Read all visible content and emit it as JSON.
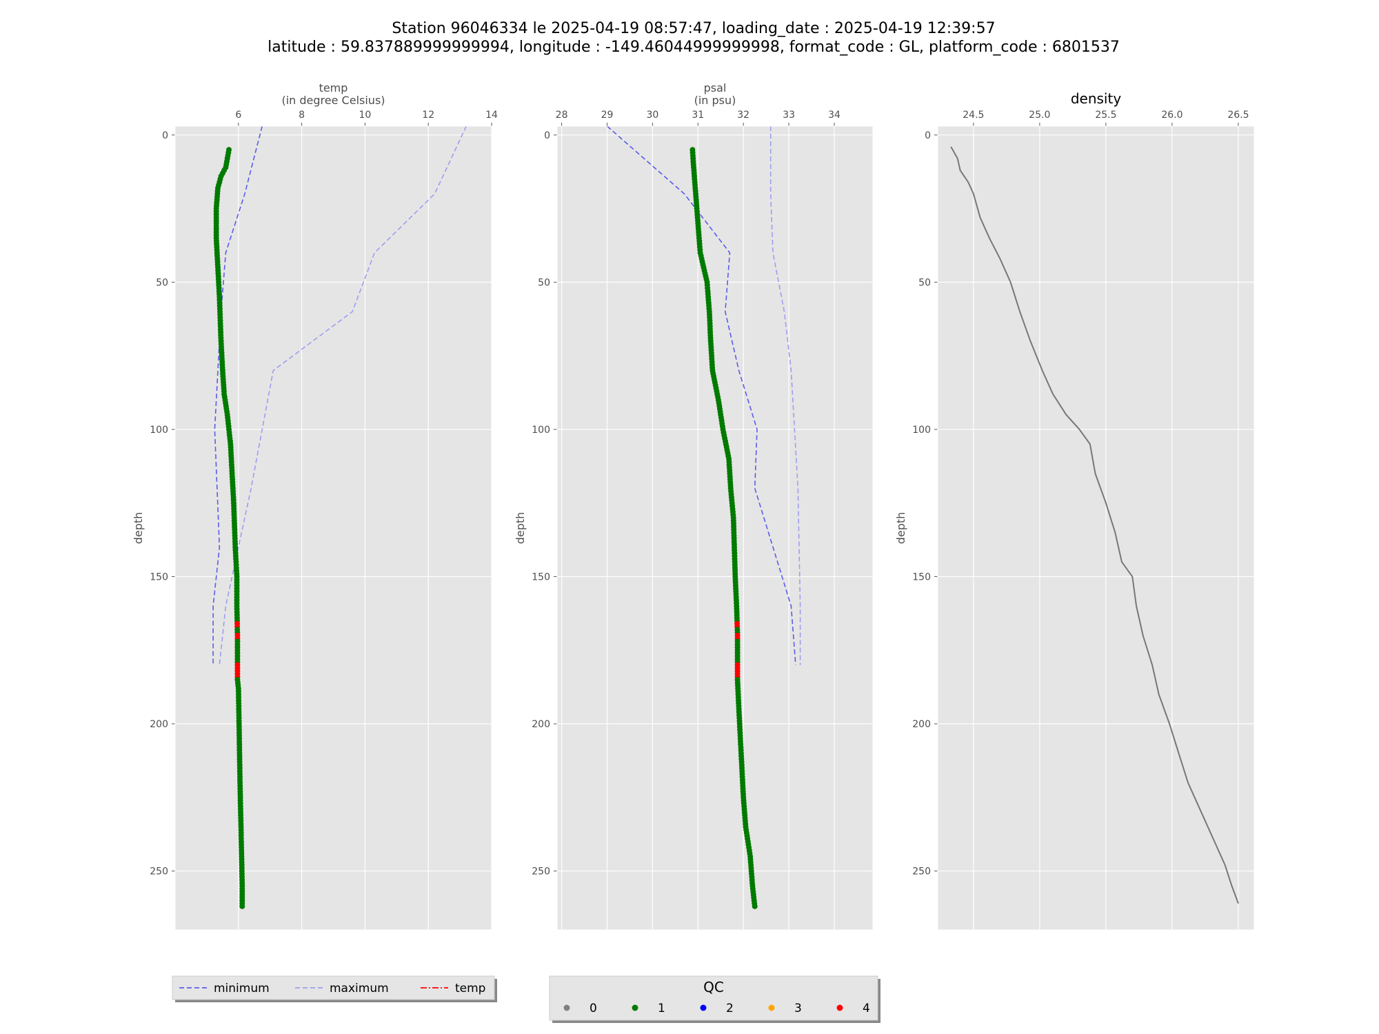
{
  "figure": {
    "title_line1": "Station 96046334 le 2025-04-19 08:57:47, loading_date : 2025-04-19 12:39:57",
    "title_line2": "latitude : 59.837889999999994, longitude : -149.46044999999998, format_code : GL, platform_code : 6801537"
  },
  "colors": {
    "panel_bg": "#e5e5e5",
    "grid": "#ffffff",
    "minimum": "#5b5bea",
    "maximum": "#9d9df0",
    "qc0": "#808080",
    "qc1": "#007a00",
    "qc2": "#0000ff",
    "qc3": "#ffa500",
    "qc4": "#ff0000",
    "density_line": "#777777"
  },
  "legend_profile": {
    "items": [
      {
        "label": "minimum",
        "style": "dashed",
        "color": "#5b5bea"
      },
      {
        "label": "maximum",
        "style": "dashed",
        "color": "#9d9df0"
      },
      {
        "label": "temp",
        "style": "dashdot",
        "color": "#ff0000"
      }
    ]
  },
  "legend_qc": {
    "title": "QC",
    "items": [
      {
        "label": "0",
        "color": "#808080"
      },
      {
        "label": "1",
        "color": "#007a00"
      },
      {
        "label": "2",
        "color": "#0000ff"
      },
      {
        "label": "3",
        "color": "#ffa500"
      },
      {
        "label": "4",
        "color": "#ff0000"
      }
    ]
  },
  "chart_data": [
    {
      "type": "scatter",
      "xlabel": "temp",
      "xlabel_unit": "(in degree Celsius)",
      "ylabel": "depth",
      "xlim": [
        4.0,
        14.0
      ],
      "ylim": [
        270,
        -3
      ],
      "xticks": [
        6,
        8,
        10,
        12,
        14
      ],
      "yticks": [
        0,
        50,
        100,
        150,
        200,
        250
      ],
      "grid": true,
      "series": [
        {
          "name": "minimum",
          "kind": "dashed-line",
          "points": [
            [
              6.75,
              -3
            ],
            [
              6.2,
              20
            ],
            [
              5.6,
              40
            ],
            [
              5.45,
              60
            ],
            [
              5.25,
              100
            ],
            [
              5.4,
              140
            ],
            [
              5.2,
              160
            ],
            [
              5.2,
              180
            ]
          ]
        },
        {
          "name": "maximum",
          "kind": "dashed-line",
          "points": [
            [
              13.2,
              -3
            ],
            [
              12.2,
              20
            ],
            [
              10.3,
              40
            ],
            [
              9.6,
              60
            ],
            [
              7.1,
              80
            ],
            [
              6.4,
              120
            ],
            [
              5.6,
              160
            ],
            [
              5.4,
              180
            ]
          ]
        },
        {
          "name": "temp",
          "kind": "qc-points",
          "profile": [
            [
              5.7,
              5
            ],
            [
              5.65,
              8
            ],
            [
              5.6,
              11
            ],
            [
              5.45,
              14
            ],
            [
              5.35,
              18
            ],
            [
              5.3,
              25
            ],
            [
              5.3,
              35
            ],
            [
              5.35,
              45
            ],
            [
              5.4,
              55
            ],
            [
              5.45,
              70
            ],
            [
              5.5,
              80
            ],
            [
              5.55,
              88
            ],
            [
              5.65,
              95
            ],
            [
              5.75,
              105
            ],
            [
              5.8,
              115
            ],
            [
              5.85,
              125
            ],
            [
              5.9,
              140
            ],
            [
              5.95,
              150
            ],
            [
              5.95,
              160
            ],
            [
              5.97,
              170
            ],
            [
              5.97,
              180
            ],
            [
              5.97,
              185
            ],
            [
              6.0,
              188
            ],
            [
              6.02,
              200
            ],
            [
              6.05,
              220
            ],
            [
              6.08,
              235
            ],
            [
              6.1,
              245
            ],
            [
              6.12,
              255
            ],
            [
              6.12,
              262
            ]
          ],
          "qc4_depths": [
            166,
            167,
            170,
            171,
            180,
            181,
            182,
            183,
            184
          ]
        }
      ]
    },
    {
      "type": "scatter",
      "xlabel": "psal",
      "xlabel_unit": "(in psu)",
      "ylabel": "depth",
      "xlim": [
        27.9,
        34.85
      ],
      "ylim": [
        270,
        -3
      ],
      "xticks": [
        28,
        29,
        30,
        31,
        32,
        33,
        34
      ],
      "yticks": [
        0,
        50,
        100,
        150,
        200,
        250
      ],
      "grid": true,
      "series": [
        {
          "name": "minimum",
          "kind": "dashed-line",
          "points": [
            [
              29.0,
              -3
            ],
            [
              30.7,
              20
            ],
            [
              31.7,
              40
            ],
            [
              31.6,
              60
            ],
            [
              31.9,
              80
            ],
            [
              32.3,
              100
            ],
            [
              32.25,
              120
            ],
            [
              33.05,
              160
            ],
            [
              33.15,
              180
            ]
          ]
        },
        {
          "name": "maximum",
          "kind": "dashed-line",
          "points": [
            [
              32.6,
              -3
            ],
            [
              32.6,
              20
            ],
            [
              32.65,
              40
            ],
            [
              32.9,
              60
            ],
            [
              33.05,
              80
            ],
            [
              33.2,
              120
            ],
            [
              33.25,
              160
            ],
            [
              33.25,
              180
            ]
          ]
        },
        {
          "name": "psal",
          "kind": "qc-points",
          "profile": [
            [
              30.88,
              5
            ],
            [
              30.9,
              10
            ],
            [
              30.95,
              20
            ],
            [
              31.0,
              30
            ],
            [
              31.05,
              40
            ],
            [
              31.2,
              50
            ],
            [
              31.25,
              60
            ],
            [
              31.28,
              70
            ],
            [
              31.32,
              80
            ],
            [
              31.45,
              90
            ],
            [
              31.55,
              100
            ],
            [
              31.68,
              110
            ],
            [
              31.72,
              120
            ],
            [
              31.78,
              130
            ],
            [
              31.8,
              140
            ],
            [
              31.82,
              150
            ],
            [
              31.85,
              160
            ],
            [
              31.87,
              170
            ],
            [
              31.87,
              185
            ],
            [
              31.9,
              195
            ],
            [
              31.95,
              210
            ],
            [
              32.0,
              225
            ],
            [
              32.05,
              235
            ],
            [
              32.15,
              245
            ],
            [
              32.2,
              255
            ],
            [
              32.25,
              262
            ]
          ],
          "qc4_depths": [
            166,
            167,
            170,
            171,
            180,
            181,
            182,
            183,
            184
          ]
        }
      ]
    },
    {
      "type": "line",
      "title": "density",
      "ylabel": "depth",
      "xlim": [
        24.23,
        26.62
      ],
      "ylim": [
        270,
        -3
      ],
      "xticks": [
        24.5,
        25.0,
        25.5,
        26.0,
        26.5
      ],
      "xticklabels": [
        "24.5",
        "25.0",
        "25.5",
        "26.0",
        "26.5"
      ],
      "yticks": [
        0,
        50,
        100,
        150,
        200,
        250
      ],
      "grid": true,
      "series": [
        {
          "name": "density",
          "points": [
            [
              24.33,
              4
            ],
            [
              24.38,
              8
            ],
            [
              24.4,
              12
            ],
            [
              24.46,
              16
            ],
            [
              24.5,
              20
            ],
            [
              24.55,
              28
            ],
            [
              24.62,
              35
            ],
            [
              24.7,
              42
            ],
            [
              24.78,
              50
            ],
            [
              24.85,
              60
            ],
            [
              24.93,
              70
            ],
            [
              25.02,
              80
            ],
            [
              25.1,
              88
            ],
            [
              25.2,
              95
            ],
            [
              25.3,
              100
            ],
            [
              25.38,
              105
            ],
            [
              25.42,
              115
            ],
            [
              25.5,
              125
            ],
            [
              25.57,
              135
            ],
            [
              25.62,
              145
            ],
            [
              25.7,
              150
            ],
            [
              25.73,
              160
            ],
            [
              25.78,
              170
            ],
            [
              25.85,
              180
            ],
            [
              25.9,
              190
            ],
            [
              25.98,
              200
            ],
            [
              26.05,
              210
            ],
            [
              26.12,
              220
            ],
            [
              26.22,
              230
            ],
            [
              26.32,
              240
            ],
            [
              26.4,
              248
            ],
            [
              26.45,
              255
            ],
            [
              26.5,
              261
            ]
          ]
        }
      ]
    }
  ]
}
